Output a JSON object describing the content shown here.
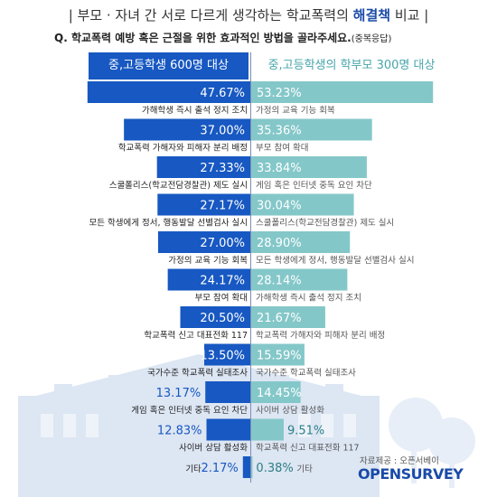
{
  "title": {
    "prefix": "| 부모 · 자녀 간 서로 다르게 생각하는 학교폭력의",
    "highlight": "해결책",
    "suffix": "비교 |"
  },
  "question": {
    "text": "Q. 학교폭력 예방 혹은 근절을 위한 효과적인 방법을 골라주세요.",
    "note": "(중복응답)"
  },
  "credit": "자료제공 : 오픈서베이",
  "logo": "OPENSURVEY",
  "colors": {
    "left_bar": "#1758c2",
    "right_bar": "#84c7c9",
    "right_header_text": "#46a5aa",
    "title_highlight": "#1a4aa8"
  },
  "chart_data": {
    "type": "bar",
    "orientation": "horizontal-diverging",
    "series": [
      {
        "name": "중,고등학생 600명 대상",
        "categories": [
          "가해학생 즉시 출석 정지 조치",
          "학교폭력 가해자와 피해자 분리 배정",
          "스쿨폴리스(학교전담경찰관) 제도 실시",
          "모든 학생에게 정서, 행동발달 선별검사 실시",
          "가정의 교육 기능 회복",
          "부모 참여 확대",
          "학교폭력 신고 대표전화 117",
          "국가수준 학교폭력 실태조사",
          "게임 혹은 인터넷 중독 요인 차단",
          "사이버 상담 활성화",
          "기타"
        ],
        "values": [
          47.67,
          37.0,
          27.33,
          27.17,
          27.0,
          24.17,
          20.5,
          13.5,
          13.17,
          12.83,
          2.17
        ],
        "labels": [
          "47.67%",
          "37.00%",
          "27.33%",
          "27.17%",
          "27.00%",
          "24.17%",
          "20.50%",
          "13.50%",
          "13.17%",
          "12.83%",
          "2.17%"
        ]
      },
      {
        "name": "중,고등학생의 학부모 300명 대상",
        "categories": [
          "가정의 교육 기능 회복",
          "부모 참여 확대",
          "게임 혹은 인터넷 중독 요인 차단",
          "스쿨폴리스(학교전담경찰관) 제도 실시",
          "모든 학생에게 정서, 행동발달 선별검사 실시",
          "가해학생 즉시 출석 정지 조치",
          "학교폭력 가해자와 피해자 분리 배정",
          "국가수준 학교폭력 실태조사",
          "사이버 상담 활성화",
          "학교폭력 신고 대표전화 117",
          "기타"
        ],
        "values": [
          53.23,
          35.36,
          33.84,
          30.04,
          28.9,
          28.14,
          21.67,
          15.59,
          14.45,
          9.51,
          0.38
        ],
        "labels": [
          "53.23%",
          "35.36%",
          "33.84%",
          "30.04%",
          "28.90%",
          "28.14%",
          "21.67%",
          "15.59%",
          "14.45%",
          "9.51%",
          "0.38%"
        ]
      }
    ]
  }
}
